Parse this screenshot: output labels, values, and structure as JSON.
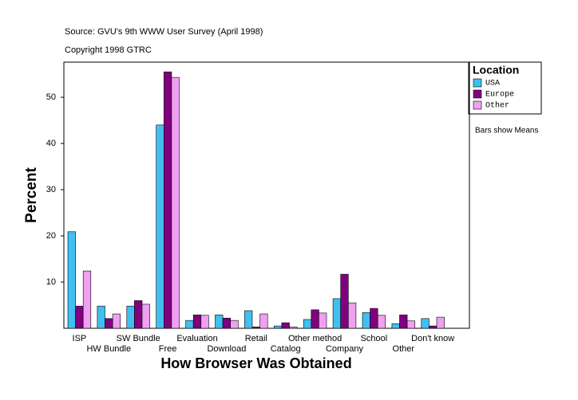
{
  "chart_data": {
    "type": "bar",
    "title": "Source: GVU's 9th WWW User Survey (April 1998)",
    "subtitle": "Copyright 1998 GTRC",
    "x_label": "How Browser Was Obtained",
    "y_label": "Percent",
    "legend_title": "Location",
    "annotation": "Bars show Means",
    "categories": [
      "ISP",
      "HW Bundle",
      "SW Bundle",
      "Free",
      "Evaluation",
      "Download",
      "Retail",
      "Catalog",
      "Other method",
      "Company",
      "School",
      "Other",
      "Don't know"
    ],
    "series": [
      {
        "name": "USA",
        "color": "#40c0f0",
        "values": [
          20.9,
          4.8,
          4.8,
          44.0,
          1.7,
          2.9,
          3.8,
          0.5,
          1.9,
          6.4,
          3.4,
          1.0,
          2.1
        ]
      },
      {
        "name": "Europe",
        "color": "#800080",
        "values": [
          4.8,
          2.1,
          6.0,
          55.5,
          2.9,
          2.2,
          0.3,
          1.2,
          4.0,
          11.7,
          4.3,
          2.9,
          0.5
        ]
      },
      {
        "name": "Other",
        "color": "#f0a0f0",
        "values": [
          12.4,
          3.1,
          5.2,
          54.3,
          2.8,
          1.7,
          3.1,
          0.3,
          3.3,
          5.5,
          2.8,
          1.6,
          2.4
        ]
      }
    ],
    "ylim": [
      0,
      57.6
    ],
    "yticks": [
      10,
      20,
      30,
      40,
      50
    ],
    "legend": "right"
  }
}
